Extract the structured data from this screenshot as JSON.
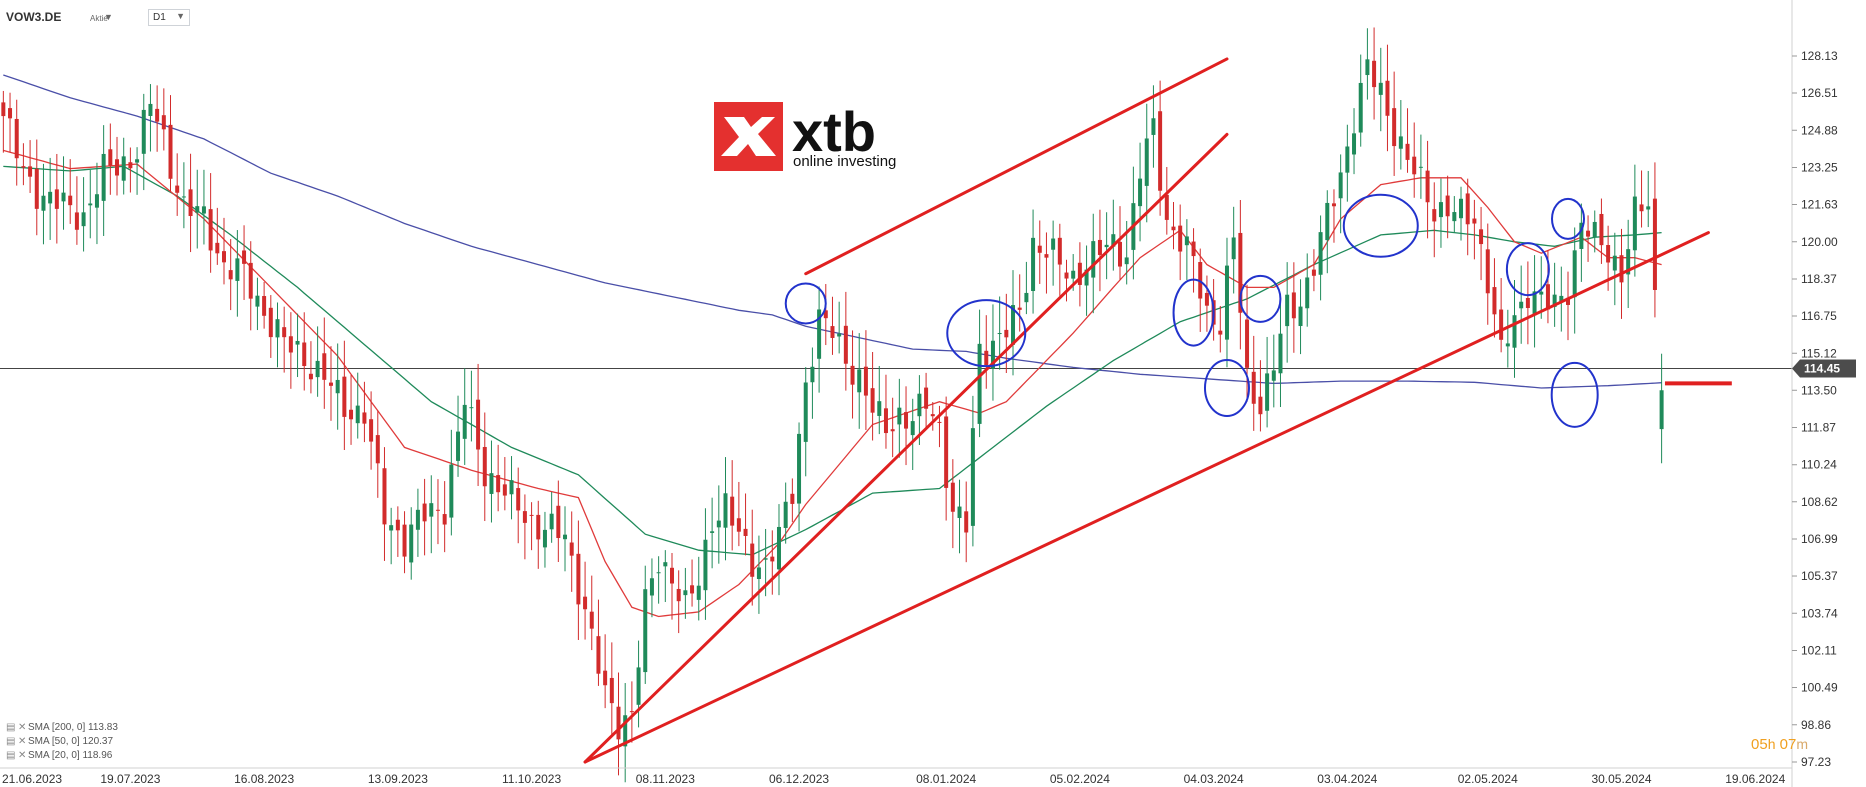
{
  "header": {
    "symbol": "VOW3.DE",
    "type": "Aktie",
    "timeframe": "D1"
  },
  "logo": {
    "brand": "xtb",
    "tagline": "online investing"
  },
  "legend": [
    {
      "label": "SMA [200, 0] 113.83",
      "color": "#4a4fa8"
    },
    {
      "label": "SMA [50, 0] 120.37",
      "color": "#1f8a5a"
    },
    {
      "label": "SMA [20, 0] 118.96",
      "color": "#e03b3b"
    }
  ],
  "timer": {
    "h": "05",
    "h_unit": "h",
    "m": "07",
    "m_unit": "m"
  },
  "chart_data": {
    "type": "candlestick",
    "y_range": [
      97.23,
      128.13
    ],
    "y_ticks": [
      "128.13",
      "126.51",
      "124.88",
      "123.25",
      "121.63",
      "120.00",
      "118.37",
      "116.75",
      "115.12",
      "113.50",
      "111.87",
      "110.24",
      "108.62",
      "106.99",
      "105.37",
      "103.74",
      "102.11",
      "100.49",
      "98.86",
      "97.23"
    ],
    "current_price": "114.45",
    "current_price_value": 114.45,
    "x_labels": [
      "21.06.2023",
      "19.07.2023",
      "16.08.2023",
      "13.09.2023",
      "11.10.2023",
      "08.11.2023",
      "06.12.2023",
      "08.01.2024",
      "05.02.2024",
      "04.03.2024",
      "03.04.2024",
      "02.05.2024",
      "30.05.2024",
      "19.06.2024"
    ],
    "x_label_index": [
      0,
      19,
      39,
      59,
      79,
      99,
      119,
      141,
      161,
      181,
      201,
      222,
      242,
      262
    ],
    "n_slots": 268,
    "close_anchors": [
      [
        0,
        125.5
      ],
      [
        3,
        123
      ],
      [
        6,
        122
      ],
      [
        9,
        121.5
      ],
      [
        12,
        121.2
      ],
      [
        15,
        123
      ],
      [
        18,
        123.5
      ],
      [
        20,
        124
      ],
      [
        22,
        126
      ],
      [
        24,
        124.5
      ],
      [
        27,
        121.5
      ],
      [
        30,
        121
      ],
      [
        33,
        119
      ],
      [
        36,
        118.5
      ],
      [
        39,
        117
      ],
      [
        42,
        115.5
      ],
      [
        45,
        115
      ],
      [
        48,
        114
      ],
      [
        51,
        112.8
      ],
      [
        54,
        112.5
      ],
      [
        57,
        108
      ],
      [
        60,
        107
      ],
      [
        63,
        108
      ],
      [
        66,
        108.5
      ],
      [
        69,
        113
      ],
      [
        72,
        110
      ],
      [
        75,
        109
      ],
      [
        78,
        108
      ],
      [
        81,
        107.5
      ],
      [
        84,
        107
      ],
      [
        87,
        104
      ],
      [
        90,
        100
      ],
      [
        92,
        99
      ],
      [
        94,
        99.5
      ],
      [
        96,
        104
      ],
      [
        98,
        106
      ],
      [
        100,
        105.5
      ],
      [
        102,
        104
      ],
      [
        104,
        105
      ],
      [
        106,
        108
      ],
      [
        108,
        108.5
      ],
      [
        110,
        107
      ],
      [
        112,
        106
      ],
      [
        114,
        106
      ],
      [
        116,
        107
      ],
      [
        118,
        109
      ],
      [
        120,
        114
      ],
      [
        122,
        116.5
      ],
      [
        124,
        116
      ],
      [
        126,
        115
      ],
      [
        128,
        114
      ],
      [
        130,
        112.5
      ],
      [
        132,
        112
      ],
      [
        134,
        112.5
      ],
      [
        136,
        112
      ],
      [
        138,
        113
      ],
      [
        140,
        112
      ],
      [
        142,
        108
      ],
      [
        144,
        107.5
      ],
      [
        146,
        115.5
      ],
      [
        148,
        115.5
      ],
      [
        150,
        116
      ],
      [
        152,
        117
      ],
      [
        154,
        120
      ],
      [
        156,
        119.5
      ],
      [
        158,
        119
      ],
      [
        160,
        118.5
      ],
      [
        162,
        119
      ],
      [
        164,
        119.5
      ],
      [
        166,
        120
      ],
      [
        168,
        119.5
      ],
      [
        170,
        123
      ],
      [
        172,
        125
      ],
      [
        174,
        121
      ],
      [
        176,
        120
      ],
      [
        178,
        119
      ],
      [
        180,
        117
      ],
      [
        182,
        116.5
      ],
      [
        184,
        120
      ],
      [
        186,
        114
      ],
      [
        188,
        113
      ],
      [
        190,
        114.5
      ],
      [
        192,
        117
      ],
      [
        194,
        117.5
      ],
      [
        196,
        119
      ],
      [
        198,
        121
      ],
      [
        200,
        123
      ],
      [
        202,
        125.5
      ],
      [
        204,
        127.5
      ],
      [
        206,
        126.5
      ],
      [
        208,
        125
      ],
      [
        210,
        123.5
      ],
      [
        212,
        122.5
      ],
      [
        214,
        121.5
      ],
      [
        216,
        121.5
      ],
      [
        218,
        121
      ],
      [
        220,
        121
      ],
      [
        222,
        118.5
      ],
      [
        224,
        115
      ],
      [
        226,
        116.5
      ],
      [
        228,
        118
      ],
      [
        230,
        117.5
      ],
      [
        232,
        117
      ],
      [
        234,
        118
      ],
      [
        236,
        121
      ],
      [
        238,
        120
      ],
      [
        240,
        119.5
      ],
      [
        242,
        118.8
      ],
      [
        244,
        121.2
      ],
      [
        246,
        121.5
      ],
      [
        248,
        113.5
      ]
    ],
    "sma20_anchors": [
      [
        0,
        124
      ],
      [
        10,
        123.2
      ],
      [
        20,
        123.4
      ],
      [
        30,
        121
      ],
      [
        40,
        118
      ],
      [
        50,
        115
      ],
      [
        60,
        111
      ],
      [
        70,
        110
      ],
      [
        80,
        109.2
      ],
      [
        86,
        108.8
      ],
      [
        90,
        106
      ],
      [
        94,
        104
      ],
      [
        98,
        103.6
      ],
      [
        104,
        103.8
      ],
      [
        110,
        105
      ],
      [
        116,
        106.8
      ],
      [
        120,
        108.5
      ],
      [
        130,
        112
      ],
      [
        140,
        113
      ],
      [
        146,
        112.5
      ],
      [
        150,
        113
      ],
      [
        160,
        116
      ],
      [
        166,
        118
      ],
      [
        170,
        119.3
      ],
      [
        176,
        120.5
      ],
      [
        180,
        119
      ],
      [
        186,
        118
      ],
      [
        190,
        118
      ],
      [
        196,
        119
      ],
      [
        200,
        121
      ],
      [
        206,
        122.5
      ],
      [
        212,
        122.8
      ],
      [
        218,
        122.8
      ],
      [
        222,
        121.5
      ],
      [
        226,
        120
      ],
      [
        230,
        119.5
      ],
      [
        236,
        120.2
      ],
      [
        240,
        119.3
      ],
      [
        244,
        119.3
      ],
      [
        248,
        119.0
      ]
    ],
    "sma50_anchors": [
      [
        0,
        123.3
      ],
      [
        10,
        123.1
      ],
      [
        18,
        123.3
      ],
      [
        26,
        122
      ],
      [
        34,
        120.3
      ],
      [
        44,
        118
      ],
      [
        54,
        115.5
      ],
      [
        64,
        113
      ],
      [
        76,
        111
      ],
      [
        86,
        109.8
      ],
      [
        96,
        107.2
      ],
      [
        104,
        106.5
      ],
      [
        112,
        106.3
      ],
      [
        120,
        107.4
      ],
      [
        130,
        109
      ],
      [
        140,
        109.2
      ],
      [
        148,
        111
      ],
      [
        156,
        112.8
      ],
      [
        166,
        114.8
      ],
      [
        176,
        116.5
      ],
      [
        186,
        117.5
      ],
      [
        196,
        119
      ],
      [
        206,
        120.3
      ],
      [
        214,
        120.5
      ],
      [
        220,
        120.3
      ],
      [
        226,
        120
      ],
      [
        232,
        119.8
      ],
      [
        238,
        120.2
      ],
      [
        244,
        120.3
      ],
      [
        248,
        120.4
      ]
    ],
    "sma200_anchors": [
      [
        0,
        127.3
      ],
      [
        10,
        126.3
      ],
      [
        20,
        125.5
      ],
      [
        30,
        124.5
      ],
      [
        40,
        123
      ],
      [
        50,
        122
      ],
      [
        60,
        120.8
      ],
      [
        70,
        119.8
      ],
      [
        80,
        119
      ],
      [
        90,
        118.2
      ],
      [
        100,
        117.6
      ],
      [
        110,
        117
      ],
      [
        115,
        116.8
      ],
      [
        120,
        116.3
      ],
      [
        128,
        115.8
      ],
      [
        136,
        115.3
      ],
      [
        144,
        115.2
      ],
      [
        150,
        114.9
      ],
      [
        160,
        114.5
      ],
      [
        170,
        114.2
      ],
      [
        180,
        114
      ],
      [
        190,
        113.8
      ],
      [
        200,
        113.9
      ],
      [
        210,
        113.9
      ],
      [
        220,
        113.85
      ],
      [
        230,
        113.6
      ],
      [
        240,
        113.7
      ],
      [
        248,
        113.83
      ]
    ],
    "trendlines": [
      {
        "from": [
          87,
          97.23
        ],
        "to": [
          183,
          124.7
        ],
        "color": "#e02020"
      },
      {
        "from": [
          87,
          97.23
        ],
        "to": [
          255,
          120.4
        ],
        "color": "#e02020"
      },
      {
        "from": [
          120,
          118.6
        ],
        "to": [
          183,
          128.0
        ],
        "color": "#e02020"
      }
    ],
    "circles": [
      {
        "i": 120,
        "p": 117.3,
        "rx": 20,
        "ry": 20
      },
      {
        "i": 147,
        "p": 116.0,
        "rx": 39,
        "ry": 33
      },
      {
        "i": 178,
        "p": 116.9,
        "rx": 20,
        "ry": 33
      },
      {
        "i": 183,
        "p": 113.6,
        "rx": 22,
        "ry": 28
      },
      {
        "i": 188,
        "p": 117.5,
        "rx": 20,
        "ry": 23
      },
      {
        "i": 206,
        "p": 120.7,
        "rx": 37,
        "ry": 31
      },
      {
        "i": 228,
        "p": 118.8,
        "rx": 21,
        "ry": 26
      },
      {
        "i": 234,
        "p": 121.0,
        "rx": 16,
        "ry": 20
      },
      {
        "i": 235,
        "p": 113.3,
        "rx": 23,
        "ry": 32
      }
    ],
    "target_marker": {
      "from": 248.5,
      "to": 258.5,
      "p": 113.8
    }
  }
}
